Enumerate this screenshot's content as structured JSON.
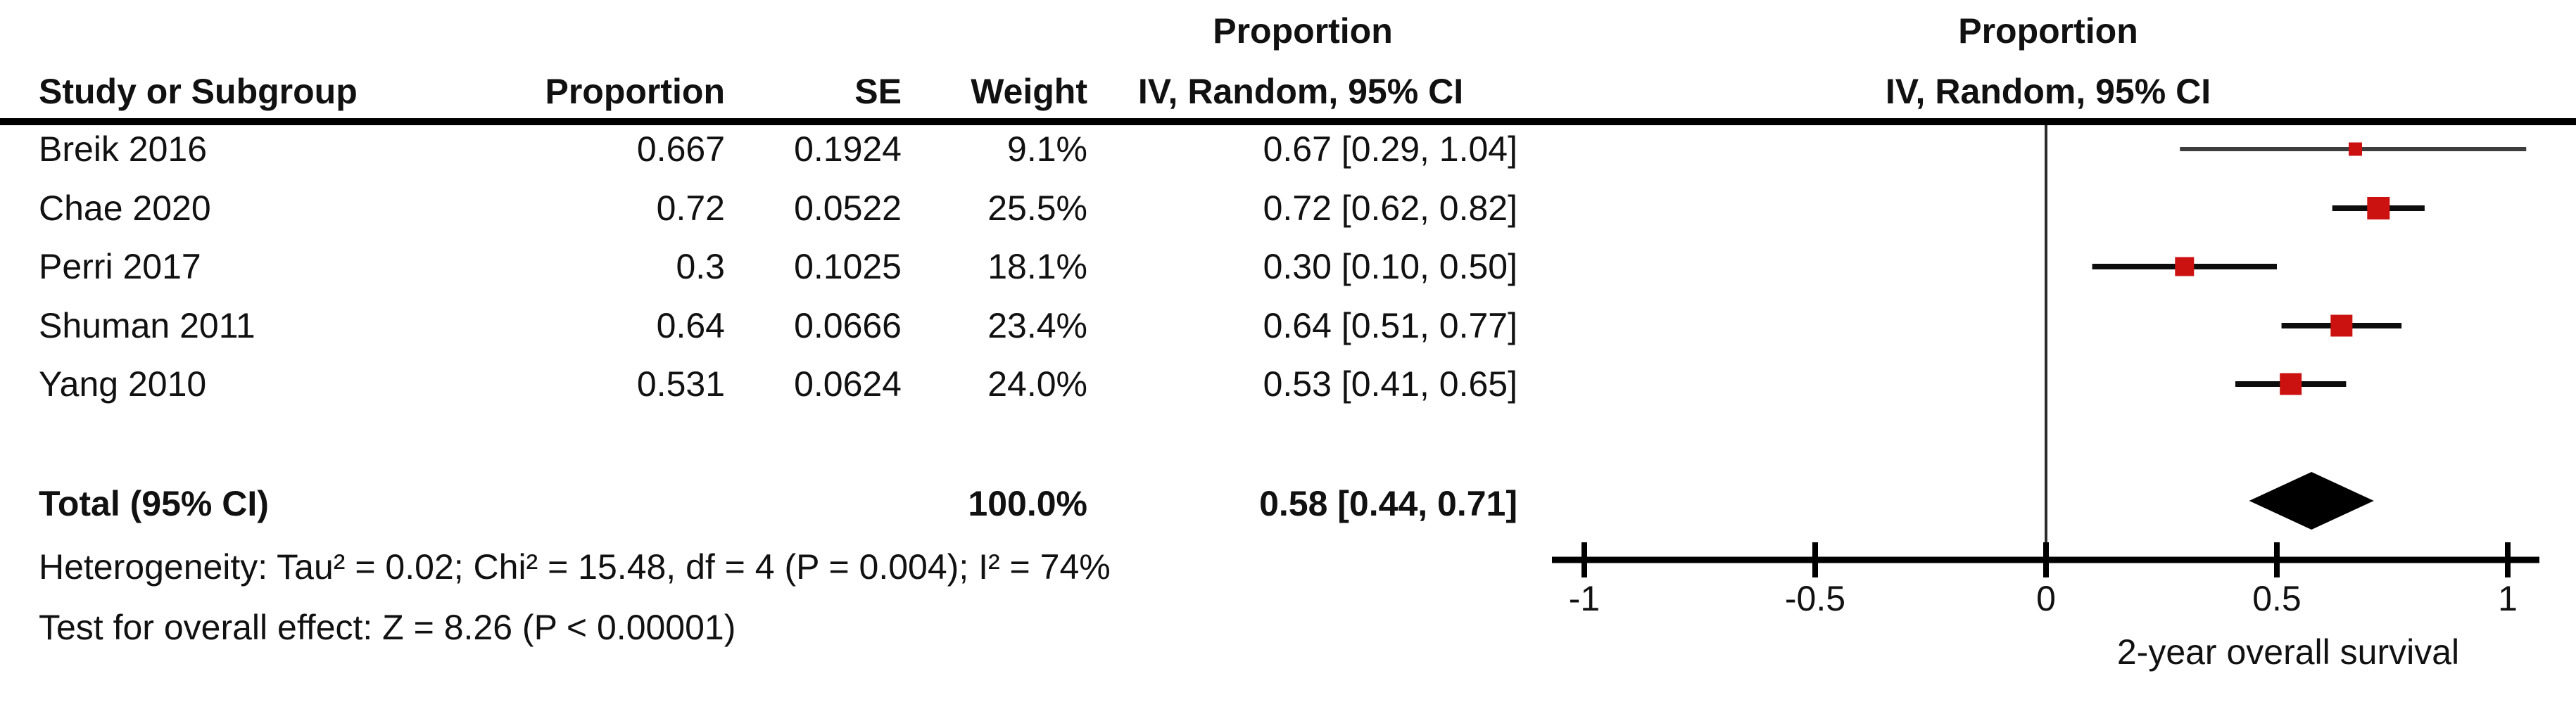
{
  "header": {
    "group_proportion_left": "Proportion",
    "group_proportion_right": "Proportion",
    "study": "Study or Subgroup",
    "proportion": "Proportion",
    "se": "SE",
    "weight": "Weight",
    "ci_left": "IV, Random, 95% CI",
    "ci_right": "IV, Random, 95% CI"
  },
  "rows": [
    {
      "study": "Breik 2016",
      "proportion": "0.667",
      "se": "0.1924",
      "weight": "9.1%",
      "ci": "0.67 [0.29, 1.04]"
    },
    {
      "study": "Chae 2020",
      "proportion": "0.72",
      "se": "0.0522",
      "weight": "25.5%",
      "ci": "0.72 [0.62, 0.82]"
    },
    {
      "study": "Perri 2017",
      "proportion": "0.3",
      "se": "0.1025",
      "weight": "18.1%",
      "ci": "0.30 [0.10, 0.50]"
    },
    {
      "study": "Shuman 2011",
      "proportion": "0.64",
      "se": "0.0666",
      "weight": "23.4%",
      "ci": "0.64 [0.51, 0.77]"
    },
    {
      "study": "Yang 2010",
      "proportion": "0.531",
      "se": "0.0624",
      "weight": "24.0%",
      "ci": "0.53 [0.41, 0.65]"
    }
  ],
  "total": {
    "label": "Total (95% CI)",
    "weight": "100.0%",
    "ci": "0.58 [0.44, 0.71]"
  },
  "footnotes": {
    "heterogeneity": "Heterogeneity: Tau² = 0.02; Chi² = 15.48, df = 4 (P = 0.004); I² = 74%",
    "overall_effect": "Test for overall effect: Z = 8.26 (P < 0.00001)"
  },
  "chart_data": {
    "type": "forest",
    "effect_measure": "IV, Random, 95% CI",
    "xlabel": "2-year overall survival",
    "xlim": [
      -1,
      1
    ],
    "ticks": [
      {
        "value": -1,
        "label": "-1"
      },
      {
        "value": -0.5,
        "label": "-0.5"
      },
      {
        "value": 0,
        "label": "0"
      },
      {
        "value": 0.5,
        "label": "0.5"
      },
      {
        "value": 1,
        "label": "1"
      }
    ],
    "studies": [
      {
        "name": "Breik 2016",
        "est": 0.67,
        "lo": 0.29,
        "hi": 1.04,
        "weight_pct": 9.1,
        "line_color": "#3d3d3d"
      },
      {
        "name": "Chae 2020",
        "est": 0.72,
        "lo": 0.62,
        "hi": 0.82,
        "weight_pct": 25.5,
        "line_color": "#0d0d0d"
      },
      {
        "name": "Perri 2017",
        "est": 0.3,
        "lo": 0.1,
        "hi": 0.5,
        "weight_pct": 18.1,
        "line_color": "#0d0d0d"
      },
      {
        "name": "Shuman 2011",
        "est": 0.64,
        "lo": 0.51,
        "hi": 0.77,
        "weight_pct": 23.4,
        "line_color": "#0d0d0d"
      },
      {
        "name": "Yang 2010",
        "est": 0.53,
        "lo": 0.41,
        "hi": 0.65,
        "weight_pct": 24.0,
        "line_color": "#0d0d0d"
      }
    ],
    "total": {
      "est": 0.58,
      "lo": 0.44,
      "hi": 0.71
    },
    "colors": {
      "square": "#cc1111",
      "diamond": "#000000",
      "axis": "#000000",
      "zero_line": "#2b2b2b"
    }
  }
}
